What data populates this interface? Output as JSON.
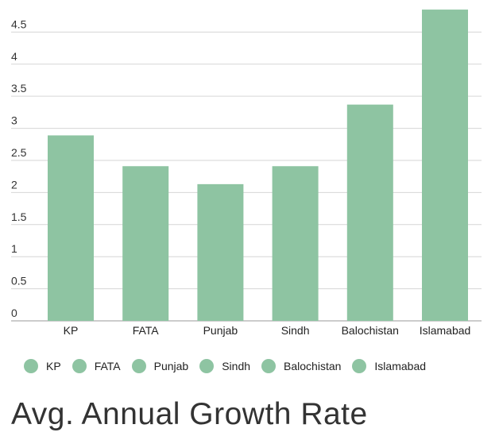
{
  "chart_data": {
    "type": "bar",
    "title": "Avg. Annual Growth Rate",
    "categories": [
      "KP",
      "FATA",
      "Punjab",
      "Sindh",
      "Balochistan",
      "Islamabad"
    ],
    "values": [
      2.89,
      2.41,
      2.13,
      2.41,
      3.37,
      4.85
    ],
    "y_ticks": [
      "0",
      "0.5",
      "1",
      "1.5",
      "2",
      "2.5",
      "3",
      "3.5",
      "4",
      "4.5"
    ],
    "ylim": [
      0,
      4.95
    ],
    "grid": true,
    "legend_position": "bottom",
    "bar_color": "#8ec4a2"
  }
}
